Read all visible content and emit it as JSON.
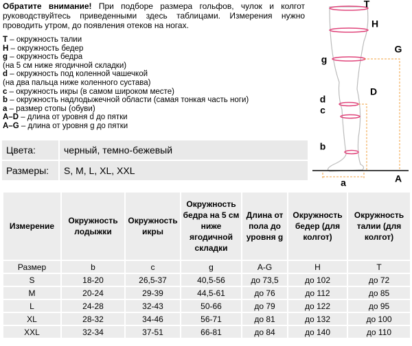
{
  "intro": {
    "lead": "Обратите внимание!",
    "text": " При подборе размера гольфов, чулок и колгот руководствуйтесь приведенными здесь таблицами. Измерения нужно проводить утром, до появления отеков на ногах."
  },
  "legend": [
    {
      "key": "T",
      "text": " – окружность талии"
    },
    {
      "key": "H",
      "text": " – окружность бедер"
    },
    {
      "key": "g",
      "text": " – окружность бедра"
    },
    {
      "text": "(на 5 см ниже ягодичной складки)"
    },
    {
      "key": "d",
      "text": " – окружность под коленной чашечкой"
    },
    {
      "text": "(на два пальца ниже коленного сустава)"
    },
    {
      "key": "c",
      "text": " – окружность икры (в самом широком месте)"
    },
    {
      "key": "b",
      "text": " – окружность надлодыжечной области (самая тонкая часть ноги)"
    },
    {
      "key": "a",
      "text": " – размер стопы (обуви)"
    },
    {
      "key": "A–D",
      "text": " – длина от уровня d до пятки"
    },
    {
      "key": "A–G",
      "text": " – длина от уровня g до пятки"
    }
  ],
  "info": [
    [
      "Цвета:",
      "черный, темно-бежевый"
    ],
    [
      "Размеры:",
      "S, M, L, XL, XXL"
    ]
  ],
  "diagram": {
    "T": "T",
    "H": "H",
    "G": "G",
    "g": "g",
    "d": "d",
    "D": "D",
    "c": "c",
    "b": "b",
    "a": "a",
    "A": "A"
  },
  "table": {
    "header": [
      "Измерение",
      "Окружность лодыжки",
      "Окружность икры",
      "Окружность бедра на 5 см ниже ягодичной складки",
      "Длина от пола до уровня g",
      "Окружность бедер  (для колгот)",
      "Окружность талии  (для колгот)"
    ],
    "rows": [
      [
        "Размер",
        "b",
        "c",
        "g",
        "A-G",
        "H",
        "T"
      ],
      [
        "S",
        "18-20",
        "26,5-37",
        "40,5-56",
        "до 73,5",
        "до 102",
        "до 72"
      ],
      [
        "M",
        "20-24",
        "29-39",
        "44,5-61",
        "до 76",
        "до 112",
        "до 85"
      ],
      [
        "L",
        "24-28",
        "32-43",
        "50-66",
        "до 79",
        "до 122",
        "до 95"
      ],
      [
        "XL",
        "28-32",
        "34-46",
        "56-71",
        "до 81",
        "до 132",
        "до 100"
      ],
      [
        "XXL",
        "32-34",
        "37-51",
        "66-81",
        "до 84",
        "до 140",
        "до 110"
      ]
    ]
  }
}
